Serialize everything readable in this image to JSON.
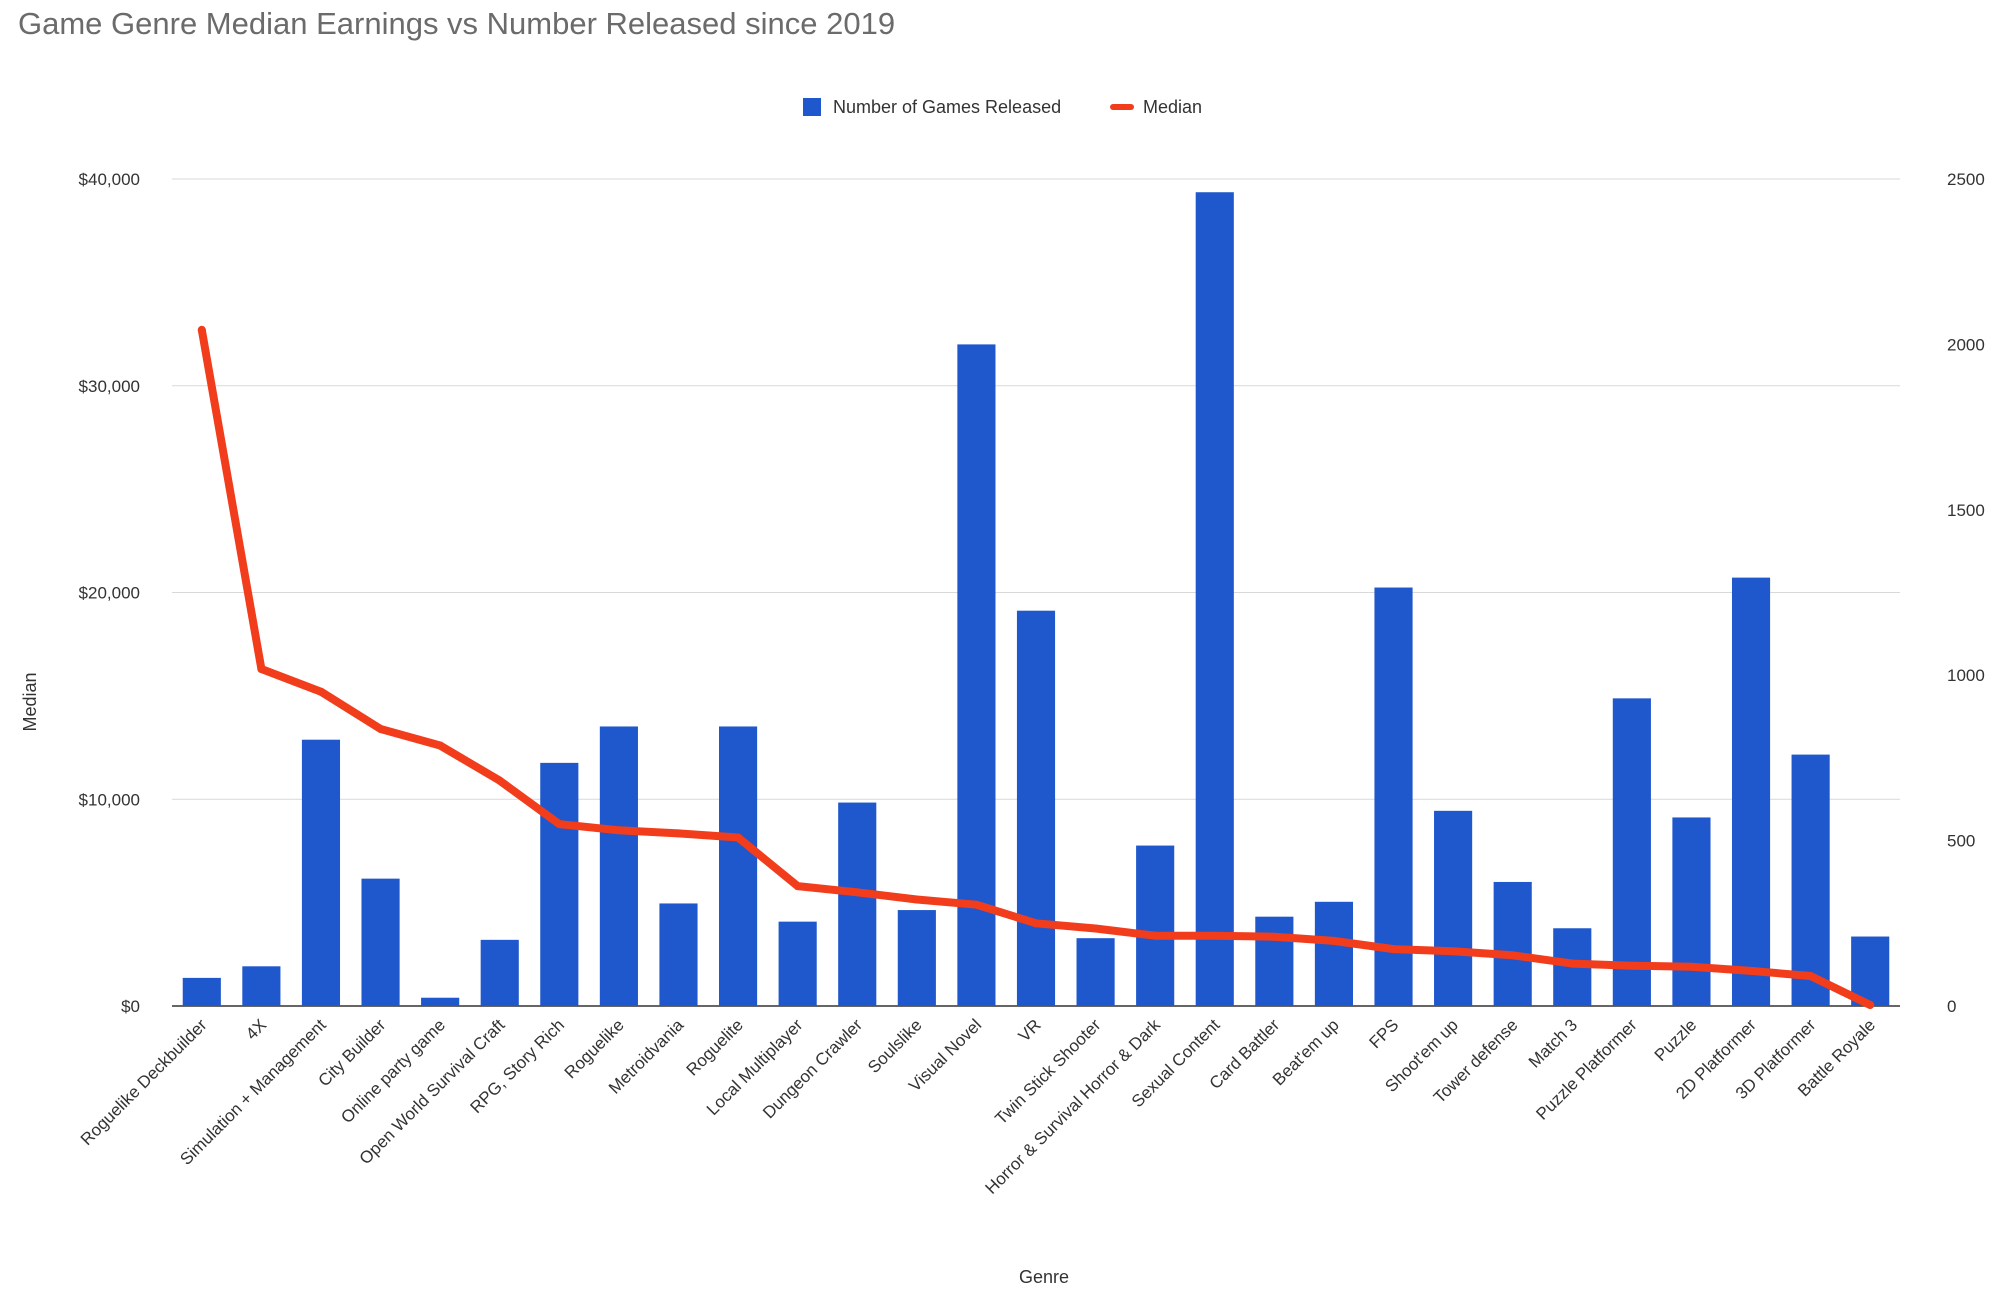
{
  "chart_data": {
    "type": "bar",
    "title": "Game Genre Median Earnings vs Number Released since 2019",
    "xlabel": "Genre",
    "ylabel": "Median",
    "y2label": "",
    "legend_position": "top",
    "grid": true,
    "categories": [
      "Roguelike Deckbuilder",
      "4X",
      "Simulation + Management",
      "City Builder",
      "Online party game",
      "Open World Survival Craft",
      "RPG, Story Rich",
      "Roguelike",
      "Metroidvania",
      "Roguelite",
      "Local Multiplayer",
      "Dungeon Crawler",
      "Soulslike",
      "Visual Novel",
      "VR",
      "Twin Stick Shooter",
      "Horror & Survival Horror & Dark",
      "Sexual Content",
      "Card Battler",
      "Beat'em up",
      "FPS",
      "Shoot'em up",
      "Tower defense",
      "Match 3",
      "Puzzle Platformer",
      "Puzzle",
      "2D Platformer",
      "3D Platformer",
      "Battle Royale"
    ],
    "series": [
      {
        "name": "Number of Games Released",
        "type": "bar",
        "axis": "right",
        "color": "#1f57cc",
        "values": [
          85,
          120,
          805,
          385,
          25,
          200,
          735,
          845,
          310,
          845,
          255,
          615,
          290,
          2000,
          1195,
          205,
          485,
          2460,
          270,
          315,
          1265,
          590,
          375,
          235,
          930,
          570,
          1295,
          760,
          210
        ]
      },
      {
        "name": "Median",
        "type": "line",
        "axis": "left",
        "color": "#f23d1c",
        "values": [
          32700,
          16300,
          15200,
          13400,
          12600,
          10900,
          8800,
          8500,
          8350,
          8150,
          5800,
          5500,
          5150,
          4900,
          4000,
          3750,
          3400,
          3400,
          3350,
          3150,
          2750,
          2650,
          2450,
          2050,
          1950,
          1900,
          1700,
          1450,
          50
        ]
      }
    ],
    "y_axis": {
      "min": 0,
      "max": 40000,
      "ticks": [
        "$0",
        "$10,000",
        "$20,000",
        "$30,000",
        "$40,000"
      ],
      "tick_values": [
        0,
        10000,
        20000,
        30000,
        40000
      ]
    },
    "y2_axis": {
      "min": 0,
      "max": 2500,
      "ticks": [
        "0",
        "500",
        "1000",
        "1500",
        "2000",
        "2500"
      ],
      "tick_values": [
        0,
        500,
        1000,
        1500,
        2000,
        2500
      ]
    }
  }
}
